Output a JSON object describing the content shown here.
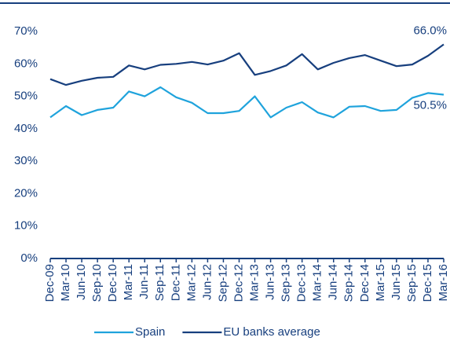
{
  "chart_data": {
    "type": "line",
    "categories": [
      "Dec-09",
      "Mar-10",
      "Jun-10",
      "Sep-10",
      "Dec-10",
      "Mar-11",
      "Jun-11",
      "Sep-11",
      "Dec-11",
      "Mar-12",
      "Jun-12",
      "Sep-12",
      "Dec-12",
      "Mar-13",
      "Jun-13",
      "Sep-13",
      "Dec-13",
      "Mar-14",
      "Jun-14",
      "Sep-14",
      "Dec-14",
      "Mar-15",
      "Jun-15",
      "Sep-15",
      "Dec-15",
      "Mar-16"
    ],
    "series": [
      {
        "name": "Spain",
        "color": "#1fa3dc",
        "values": [
          43.5,
          47.0,
          44.2,
          45.8,
          46.5,
          51.5,
          50.0,
          52.8,
          49.7,
          48.0,
          44.8,
          44.8,
          45.5,
          50.0,
          43.5,
          46.5,
          48.2,
          45.0,
          43.5,
          46.8,
          47.0,
          45.5,
          45.8,
          49.5,
          51.0,
          50.5
        ],
        "value_labels": [
          null,
          null,
          null,
          null,
          null,
          null,
          null,
          null,
          null,
          null,
          null,
          null,
          null,
          null,
          null,
          null,
          null,
          null,
          null,
          null,
          null,
          null,
          null,
          null,
          null,
          "50.5%"
        ]
      },
      {
        "name": "EU banks average",
        "color": "#173f7e",
        "values": [
          55.3,
          53.5,
          54.8,
          55.7,
          56.0,
          59.5,
          58.3,
          59.7,
          60.0,
          60.6,
          59.8,
          61.0,
          63.3,
          56.6,
          57.8,
          59.5,
          63.0,
          58.3,
          60.3,
          61.8,
          62.7,
          61.0,
          59.3,
          59.8,
          62.5,
          66.0
        ],
        "value_labels": [
          null,
          null,
          null,
          null,
          null,
          null,
          null,
          null,
          null,
          null,
          null,
          null,
          null,
          null,
          null,
          null,
          null,
          null,
          null,
          null,
          null,
          null,
          null,
          null,
          null,
          "66.0%"
        ]
      }
    ],
    "ylim": [
      0,
      70
    ],
    "yticks": [
      {
        "value": 0,
        "label": "0%"
      },
      {
        "value": 10,
        "label": "10%"
      },
      {
        "value": 20,
        "label": "20%"
      },
      {
        "value": 30,
        "label": "30%"
      },
      {
        "value": 40,
        "label": "40%"
      },
      {
        "value": 50,
        "label": "50%"
      },
      {
        "value": 60,
        "label": "60%"
      },
      {
        "value": 70,
        "label": "70%"
      }
    ],
    "grid": false,
    "legend": "bottom"
  }
}
